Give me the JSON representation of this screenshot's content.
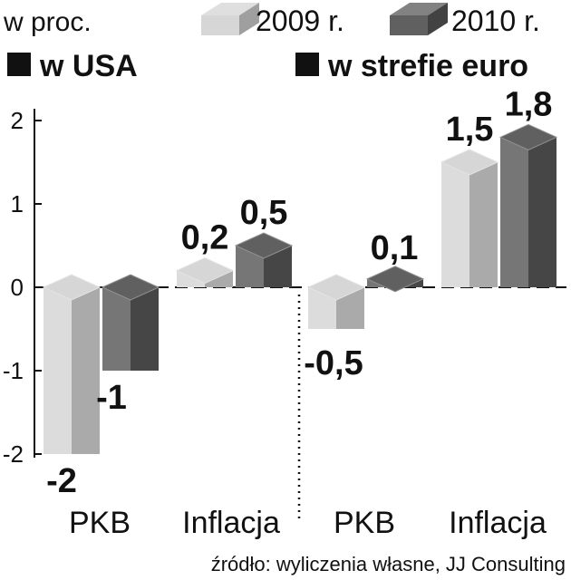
{
  "chart_data": {
    "type": "bar",
    "unit_label": "w proc.",
    "legend": [
      {
        "name": "2009 r.",
        "color": "#d4d4d4"
      },
      {
        "name": "2010 r.",
        "color": "#585858"
      }
    ],
    "groups": [
      {
        "title": "w USA",
        "categories": [
          "PKB",
          "Inflacja"
        ]
      },
      {
        "title": "w strefie euro",
        "categories": [
          "PKB",
          "Inflacja"
        ]
      }
    ],
    "series": [
      {
        "name": "2009 r.",
        "values": [
          -2,
          0.2,
          -0.5,
          1.5
        ],
        "labels": [
          "-2",
          "0,2",
          "-0,5",
          "1,5"
        ]
      },
      {
        "name": "2010 r.",
        "values": [
          -1,
          0.5,
          0.1,
          1.8
        ],
        "labels": [
          "-1",
          "0,5",
          "0,1",
          "1,8"
        ]
      }
    ],
    "ylim": [
      -2,
      2
    ],
    "yticks": [
      2,
      1,
      0,
      -1,
      -2
    ],
    "ytick_labels": [
      "2",
      "1",
      "0",
      "-1",
      "-2"
    ],
    "source": "źródło: wyliczenia własne, JJ Consulting"
  }
}
